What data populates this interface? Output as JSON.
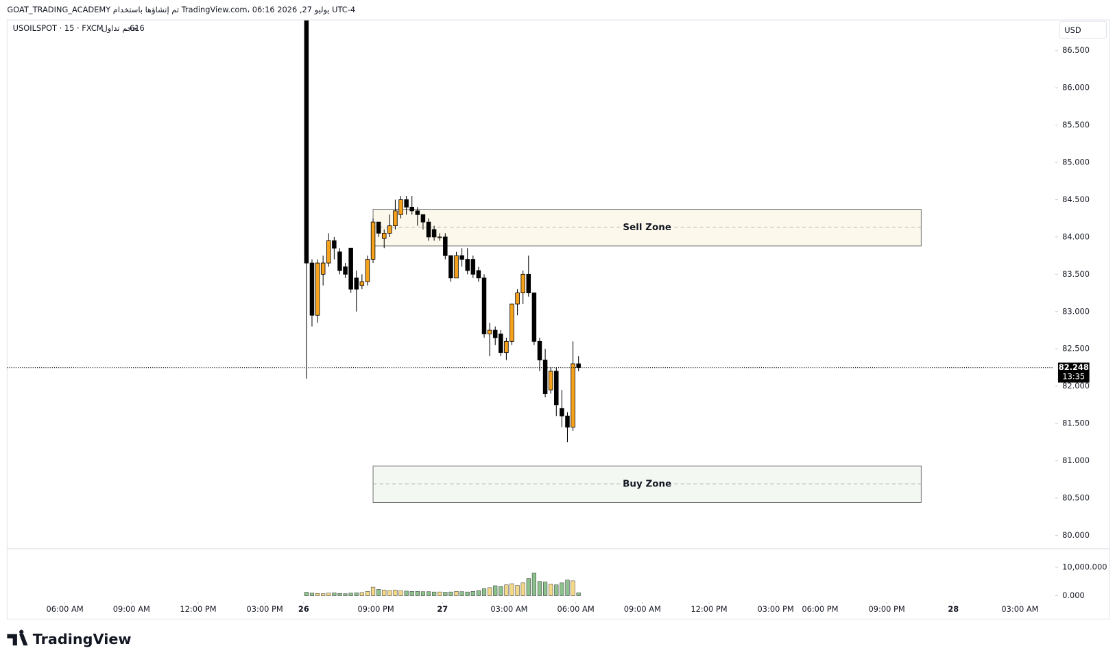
{
  "chart_data": {
    "type": "candlestick",
    "title": "GOAT_TRADING_ACADEMY تم إنشاؤها باستخدام TradingView.com، 06:16 2026 ,27 يوليو UTC-4",
    "symbol": "USOILSPOT · 15 · FXCM",
    "volume_label": "حجم تداول",
    "volume_value": "616",
    "currency": "USD",
    "brand": "TradingView",
    "up_color": "#f7a21b",
    "down_color": "#000000",
    "volume_up_color": "#f3d888",
    "volume_down_color": "#8cc08c",
    "x": [
      10.875,
      11.125,
      11.375,
      11.625,
      11.875,
      12.125,
      12.375,
      12.625,
      12.875,
      13.125,
      13.375,
      13.625,
      13.875,
      14.125,
      14.375,
      14.625,
      14.875,
      15.125,
      15.375,
      15.625,
      15.875,
      16.125,
      16.375,
      16.625,
      16.875,
      17.125,
      17.375,
      17.625,
      17.875,
      18.125,
      18.375,
      18.625,
      18.875,
      19.125,
      19.375,
      19.625,
      19.875,
      20.125,
      20.375,
      20.625,
      20.875,
      21.125,
      21.375,
      21.625,
      21.875,
      22.125,
      22.375,
      22.625,
      22.875,
      23.125
    ],
    "open": [
      86.9,
      83.65,
      82.95,
      83.5,
      83.65,
      83.95,
      83.8,
      83.6,
      83.85,
      83.45,
      83.35,
      83.4,
      83.7,
      84.2,
      83.98,
      84.05,
      84.15,
      84.3,
      84.5,
      84.4,
      84.35,
      84.3,
      84.2,
      84.1,
      84.0,
      84.0,
      83.75,
      83.45,
      83.75,
      83.7,
      83.7,
      83.55,
      83.45,
      82.7,
      82.75,
      82.7,
      82.45,
      82.6,
      83.1,
      83.25,
      83.5,
      83.25,
      82.6,
      82.35,
      81.95,
      82.2,
      81.7,
      81.6,
      81.45,
      82.3
    ],
    "high": [
      86.9,
      83.7,
      83.7,
      83.75,
      84.05,
      84.0,
      83.85,
      83.65,
      83.85,
      83.55,
      83.5,
      83.75,
      84.25,
      84.2,
      84.1,
      84.3,
      84.5,
      84.55,
      84.55,
      84.55,
      84.4,
      84.3,
      84.25,
      84.15,
      84.05,
      84.05,
      83.75,
      83.8,
      83.85,
      83.85,
      83.75,
      83.6,
      83.5,
      82.85,
      82.8,
      82.75,
      82.65,
      83.1,
      83.3,
      83.55,
      83.75,
      83.25,
      82.65,
      82.5,
      82.25,
      82.25,
      81.95,
      81.65,
      82.6,
      82.4
    ],
    "low": [
      82.1,
      82.8,
      82.85,
      83.35,
      83.6,
      83.7,
      83.5,
      83.45,
      83.25,
      83.0,
      83.3,
      83.35,
      83.65,
      84.0,
      83.85,
      84.0,
      84.1,
      84.25,
      84.3,
      84.3,
      84.15,
      84.1,
      83.95,
      83.95,
      83.95,
      83.7,
      83.4,
      83.45,
      83.6,
      83.5,
      83.45,
      83.4,
      82.65,
      82.4,
      82.55,
      82.4,
      82.35,
      82.55,
      82.95,
      83.1,
      83.2,
      82.55,
      82.2,
      81.85,
      81.9,
      81.6,
      81.45,
      81.25,
      81.4,
      82.2
    ],
    "close": [
      83.65,
      82.95,
      83.65,
      83.65,
      83.95,
      83.85,
      83.55,
      83.5,
      83.3,
      83.3,
      83.4,
      83.7,
      84.2,
      84.05,
      84.05,
      84.15,
      84.35,
      84.5,
      84.4,
      84.35,
      84.3,
      84.2,
      84.0,
      84.0,
      84.0,
      83.75,
      83.45,
      83.75,
      83.7,
      83.55,
      83.5,
      83.45,
      82.7,
      82.75,
      82.65,
      82.45,
      82.6,
      83.1,
      83.25,
      83.5,
      83.25,
      82.6,
      82.35,
      81.9,
      82.2,
      81.75,
      81.6,
      81.45,
      82.3,
      82.25
    ],
    "volume": [
      1200,
      900,
      800,
      700,
      900,
      1000,
      800,
      700,
      900,
      1000,
      1100,
      1500,
      3000,
      2200,
      2000,
      1800,
      2000,
      1700,
      1600,
      1500,
      1500,
      1400,
      1400,
      1300,
      1300,
      1200,
      1300,
      1500,
      1400,
      1300,
      1500,
      1800,
      2500,
      2800,
      3500,
      3200,
      3800,
      4200,
      3600,
      4500,
      6000,
      8000,
      5000,
      4800,
      4000,
      3800,
      4500,
      5500,
      5200,
      1000
    ],
    "last_price": {
      "value": 82.248,
      "label": "82.248"
    },
    "countdown": "13:35",
    "zones": [
      {
        "name": "Sell Zone",
        "x": [
          13.875,
          38.55
        ],
        "top": 84.37,
        "bottom": 83.88,
        "mid": 84.13,
        "color": "#fdf8ec",
        "border": "#555555"
      },
      {
        "name": "Buy Zone",
        "x": [
          13.875,
          38.55
        ],
        "top": 80.93,
        "bottom": 80.44,
        "mid": 80.69,
        "color": "#f3f8f3",
        "border": "#555555"
      }
    ],
    "xlim": [
      -2.6,
      44.52
    ],
    "ylim": [
      79.83,
      86.91
    ],
    "vlim": [
      -2000,
      16250
    ],
    "xticks": [
      {
        "value": 0,
        "label": "06:00 AM"
      },
      {
        "value": 3,
        "label": "09:00 AM"
      },
      {
        "value": 6,
        "label": "12:00 PM"
      },
      {
        "value": 9,
        "label": "03:00 PM"
      },
      {
        "value": 10.75,
        "label": "26"
      },
      {
        "value": 14,
        "label": "09:00 PM"
      },
      {
        "value": 17,
        "label": "27"
      },
      {
        "value": 20,
        "label": "03:00 AM"
      },
      {
        "value": 23,
        "label": "06:00 AM"
      },
      {
        "value": 26,
        "label": "09:00 AM"
      },
      {
        "value": 29,
        "label": "12:00 PM"
      },
      {
        "value": 32,
        "label": "03:00 PM"
      },
      {
        "value": 34,
        "label": "06:00 PM"
      },
      {
        "value": 37,
        "label": "09:00 PM"
      },
      {
        "value": 40,
        "label": "28"
      },
      {
        "value": 43,
        "label": "03:00 AM"
      }
    ],
    "yticks": [
      {
        "value": 80,
        "label": "80.000"
      },
      {
        "value": 80.5,
        "label": "80.500"
      },
      {
        "value": 81,
        "label": "81.000"
      },
      {
        "value": 81.5,
        "label": "81.500"
      },
      {
        "value": 82,
        "label": "82.000"
      },
      {
        "value": 82.5,
        "label": "82.500"
      },
      {
        "value": 83,
        "label": "83.000"
      },
      {
        "value": 83.5,
        "label": "83.500"
      },
      {
        "value": 84,
        "label": "84.000"
      },
      {
        "value": 84.5,
        "label": "84.500"
      },
      {
        "value": 85,
        "label": "85.000"
      },
      {
        "value": 85.5,
        "label": "85.500"
      },
      {
        "value": 86,
        "label": "86.000"
      },
      {
        "value": 86.5,
        "label": "86.500"
      }
    ],
    "vticks": [
      {
        "value": 0,
        "label": "0.000"
      },
      {
        "value": 10000,
        "label": "10,000.000"
      }
    ]
  }
}
